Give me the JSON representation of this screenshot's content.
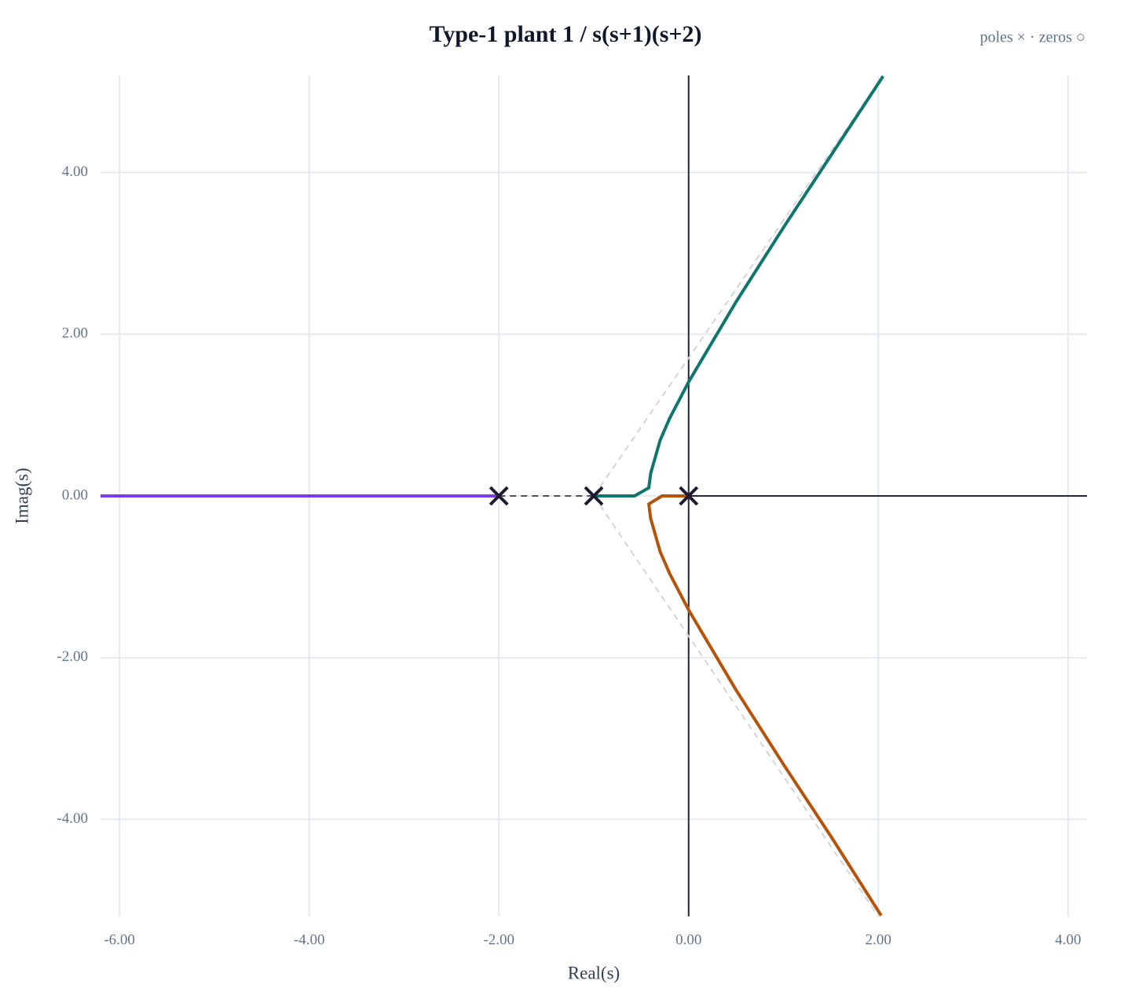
{
  "chart_data": {
    "type": "root-locus",
    "title": "Type-1 plant 1 / s(s+1)(s+2)",
    "annotation": "poles × · zeros ○",
    "x_label": "Real(s)",
    "y_label": "Imag(s)",
    "xlim": [
      -6.2,
      4.2
    ],
    "ylim": [
      -5.2,
      5.2
    ],
    "xticks": [
      {
        "value": -6,
        "label": "-6.00"
      },
      {
        "value": -4,
        "label": "-4.00"
      },
      {
        "value": -2,
        "label": "-2.00"
      },
      {
        "value": 0,
        "label": "0.00"
      },
      {
        "value": 2,
        "label": "2.00"
      },
      {
        "value": 4,
        "label": "4.00"
      }
    ],
    "yticks": [
      {
        "value": -4,
        "label": "-4.00"
      },
      {
        "value": -2,
        "label": "-2.00"
      },
      {
        "value": 0,
        "label": "0.00"
      },
      {
        "value": 2,
        "label": "2.00"
      },
      {
        "value": 4,
        "label": "4.00"
      }
    ],
    "grid": true,
    "series": [
      {
        "color": "#7c3aed",
        "x": [
          -2,
          -6.2
        ],
        "y": [
          0,
          0
        ]
      },
      {
        "color": "#0f766e",
        "x": [
          -1,
          -0.57,
          -0.42,
          -0.4,
          -0.3,
          -0.2,
          0,
          0.5,
          1,
          1.5,
          2.05
        ],
        "y": [
          0,
          0,
          0.1,
          0.28,
          0.69,
          0.96,
          1.41,
          2.4,
          3.32,
          4.21,
          5.19
        ]
      },
      {
        "color": "#b45309",
        "x": [
          0,
          -0.28,
          -0.42,
          -0.4,
          -0.3,
          -0.2,
          0,
          0.5,
          1,
          1.5,
          2.03
        ],
        "y": [
          0,
          0,
          -0.1,
          -0.28,
          -0.69,
          -0.96,
          -1.41,
          -2.4,
          -3.32,
          -4.21,
          -5.19
        ]
      }
    ],
    "asymptotes": {
      "color": "#d1d5db",
      "lines": [
        {
          "x": [
            -1,
            2.05
          ],
          "y": [
            0,
            5.2
          ]
        },
        {
          "x": [
            -1,
            2.0
          ],
          "y": [
            0,
            -5.2
          ]
        }
      ]
    },
    "gap": {
      "color": "#4b5563",
      "x": [
        -2,
        -1
      ],
      "y": [
        0,
        0
      ]
    },
    "poles": {
      "color": "#1e1b2e",
      "x": [
        0,
        -1,
        -2
      ],
      "y": [
        0,
        0,
        0
      ]
    }
  }
}
